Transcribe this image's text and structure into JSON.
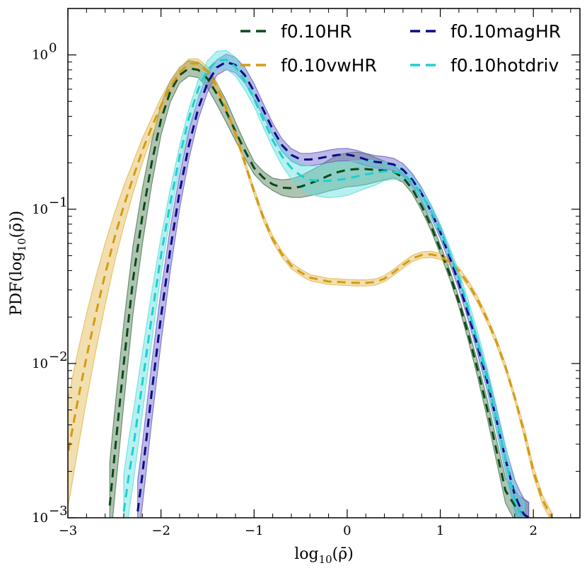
{
  "chart_data": {
    "type": "line",
    "xlabel": "log10(ρ̄)",
    "ylabel": "PDF(log10(ρ̄))",
    "xlim": [
      -3,
      2.5
    ],
    "ylim": [
      0.001,
      2
    ],
    "yscale": "log",
    "legend": "top-right, 2 columns",
    "xticks": [
      {
        "value": -3,
        "label": "−3"
      },
      {
        "value": -2,
        "label": "−2"
      },
      {
        "value": -1,
        "label": "−1"
      },
      {
        "value": 0,
        "label": "0"
      },
      {
        "value": 1,
        "label": "1"
      },
      {
        "value": 2,
        "label": "2"
      }
    ],
    "yticks": [
      {
        "value": 0.001,
        "base": "10",
        "exp": "−3"
      },
      {
        "value": 0.01,
        "base": "10",
        "exp": "−2"
      },
      {
        "value": 0.1,
        "base": "10",
        "exp": "−1"
      },
      {
        "value": 1,
        "base": "10",
        "exp": "0"
      }
    ],
    "series": [
      {
        "name": "f0.10HR",
        "color": "#0b4a15",
        "band_color": "#4d7a55",
        "x": [
          -2.55,
          -2.5,
          -2.4,
          -2.3,
          -2.2,
          -2.1,
          -2.0,
          -1.9,
          -1.8,
          -1.7,
          -1.6,
          -1.5,
          -1.4,
          -1.3,
          -1.2,
          -1.1,
          -1.0,
          -0.9,
          -0.8,
          -0.7,
          -0.6,
          -0.5,
          -0.4,
          -0.3,
          -0.2,
          -0.1,
          0.0,
          0.1,
          0.2,
          0.3,
          0.4,
          0.5,
          0.6,
          0.7,
          0.8,
          0.9,
          1.0,
          1.1,
          1.2,
          1.3,
          1.4,
          1.5,
          1.6,
          1.7,
          1.8,
          1.85,
          1.9,
          1.95
        ],
        "y": [
          0.0012,
          0.0025,
          0.01,
          0.035,
          0.09,
          0.2,
          0.38,
          0.58,
          0.74,
          0.82,
          0.8,
          0.7,
          0.56,
          0.43,
          0.32,
          0.24,
          0.185,
          0.16,
          0.145,
          0.138,
          0.137,
          0.14,
          0.147,
          0.155,
          0.165,
          0.174,
          0.18,
          0.182,
          0.182,
          0.18,
          0.178,
          0.175,
          0.16,
          0.135,
          0.105,
          0.078,
          0.055,
          0.038,
          0.025,
          0.0155,
          0.0092,
          0.0052,
          0.0028,
          0.0015,
          0.0012,
          0.0011,
          0.00105,
          0.001
        ],
        "band": [
          0.28,
          0.28,
          0.26,
          0.22,
          0.18,
          0.14,
          0.1,
          0.07,
          0.05,
          0.05,
          0.05,
          0.06,
          0.07,
          0.07,
          0.06,
          0.05,
          0.04,
          0.04,
          0.04,
          0.05,
          0.06,
          0.07,
          0.08,
          0.09,
          0.1,
          0.11,
          0.11,
          0.11,
          0.1,
          0.08,
          0.06,
          0.04,
          0.03,
          0.03,
          0.03,
          0.03,
          0.03,
          0.03,
          0.03,
          0.04,
          0.05,
          0.06,
          0.07,
          0.08,
          0.1,
          0.1,
          0.1,
          0.1
        ]
      },
      {
        "name": "f0.10vwHR",
        "color": "#d49b12",
        "band_color": "#e3b850",
        "x": [
          -3.05,
          -3.0,
          -2.9,
          -2.8,
          -2.7,
          -2.6,
          -2.5,
          -2.4,
          -2.3,
          -2.2,
          -2.1,
          -2.0,
          -1.9,
          -1.8,
          -1.7,
          -1.6,
          -1.5,
          -1.4,
          -1.3,
          -1.2,
          -1.1,
          -1.0,
          -0.9,
          -0.8,
          -0.7,
          -0.6,
          -0.5,
          -0.4,
          -0.3,
          -0.2,
          -0.1,
          0.0,
          0.1,
          0.2,
          0.3,
          0.4,
          0.5,
          0.6,
          0.7,
          0.8,
          0.9,
          1.0,
          1.1,
          1.2,
          1.3,
          1.4,
          1.5,
          1.6,
          1.7,
          1.8,
          1.9,
          2.0,
          2.1,
          2.2
        ],
        "y": [
          0.0018,
          0.0026,
          0.0055,
          0.011,
          0.021,
          0.038,
          0.065,
          0.105,
          0.16,
          0.24,
          0.34,
          0.47,
          0.62,
          0.77,
          0.88,
          0.88,
          0.78,
          0.62,
          0.45,
          0.31,
          0.2,
          0.13,
          0.088,
          0.064,
          0.051,
          0.043,
          0.039,
          0.036,
          0.035,
          0.034,
          0.0338,
          0.0335,
          0.0333,
          0.0333,
          0.0337,
          0.0355,
          0.039,
          0.0435,
          0.048,
          0.0505,
          0.051,
          0.0495,
          0.0455,
          0.04,
          0.033,
          0.026,
          0.0195,
          0.014,
          0.0095,
          0.006,
          0.0036,
          0.002,
          0.0013,
          0.001
        ],
        "band": [
          0.36,
          0.35,
          0.32,
          0.28,
          0.24,
          0.2,
          0.16,
          0.13,
          0.1,
          0.08,
          0.06,
          0.05,
          0.04,
          0.03,
          0.03,
          0.03,
          0.03,
          0.03,
          0.02,
          0.02,
          0.02,
          0.02,
          0.02,
          0.02,
          0.02,
          0.02,
          0.02,
          0.02,
          0.02,
          0.02,
          0.02,
          0.02,
          0.02,
          0.02,
          0.02,
          0.02,
          0.02,
          0.02,
          0.02,
          0.02,
          0.02,
          0.02,
          0.02,
          0.02,
          0.02,
          0.02,
          0.02,
          0.02,
          0.02,
          0.02,
          0.03,
          0.03,
          0.03,
          0.03
        ]
      },
      {
        "name": "f0.10magHR",
        "color": "#0a0a8a",
        "band_color": "#6a63c8",
        "x": [
          -2.25,
          -2.2,
          -2.1,
          -2.0,
          -1.9,
          -1.8,
          -1.7,
          -1.6,
          -1.5,
          -1.4,
          -1.3,
          -1.2,
          -1.1,
          -1.0,
          -0.9,
          -0.8,
          -0.7,
          -0.6,
          -0.5,
          -0.4,
          -0.3,
          -0.2,
          -0.1,
          0.0,
          0.1,
          0.2,
          0.3,
          0.4,
          0.5,
          0.6,
          0.7,
          0.8,
          0.9,
          1.0,
          1.1,
          1.2,
          1.3,
          1.4,
          1.5,
          1.6,
          1.7,
          1.8,
          1.85,
          1.9,
          1.95
        ],
        "y": [
          0.0011,
          0.0019,
          0.0065,
          0.02,
          0.055,
          0.13,
          0.26,
          0.45,
          0.66,
          0.83,
          0.9,
          0.86,
          0.74,
          0.58,
          0.44,
          0.33,
          0.26,
          0.225,
          0.21,
          0.21,
          0.214,
          0.22,
          0.225,
          0.226,
          0.22,
          0.21,
          0.203,
          0.2,
          0.195,
          0.18,
          0.155,
          0.126,
          0.097,
          0.071,
          0.049,
          0.033,
          0.021,
          0.013,
          0.0078,
          0.0044,
          0.0024,
          0.0014,
          0.0012,
          0.00105,
          0.001
        ],
        "band": [
          0.2,
          0.2,
          0.19,
          0.17,
          0.14,
          0.11,
          0.09,
          0.07,
          0.06,
          0.05,
          0.05,
          0.05,
          0.05,
          0.05,
          0.04,
          0.04,
          0.04,
          0.04,
          0.04,
          0.04,
          0.04,
          0.04,
          0.04,
          0.04,
          0.04,
          0.04,
          0.04,
          0.04,
          0.04,
          0.04,
          0.04,
          0.04,
          0.04,
          0.04,
          0.04,
          0.04,
          0.04,
          0.05,
          0.06,
          0.07,
          0.08,
          0.1,
          0.1,
          0.1,
          0.1
        ]
      },
      {
        "name": "f0.10hotdriv",
        "color": "#1ecfcf",
        "band_color": "#5fdedd",
        "x": [
          -2.4,
          -2.35,
          -2.3,
          -2.2,
          -2.1,
          -2.0,
          -1.9,
          -1.8,
          -1.7,
          -1.6,
          -1.5,
          -1.4,
          -1.3,
          -1.2,
          -1.1,
          -1.0,
          -0.9,
          -0.8,
          -0.7,
          -0.6,
          -0.5,
          -0.4,
          -0.3,
          -0.2,
          -0.1,
          0.0,
          0.1,
          0.2,
          0.3,
          0.4,
          0.5,
          0.6,
          0.7,
          0.8,
          0.9,
          1.0,
          1.1,
          1.2,
          1.3,
          1.4,
          1.5,
          1.6,
          1.7,
          1.8,
          1.85,
          1.9
        ],
        "y": [
          0.0011,
          0.0018,
          0.0028,
          0.0075,
          0.02,
          0.05,
          0.11,
          0.22,
          0.39,
          0.6,
          0.8,
          0.92,
          0.93,
          0.84,
          0.68,
          0.52,
          0.38,
          0.28,
          0.22,
          0.185,
          0.165,
          0.155,
          0.152,
          0.153,
          0.155,
          0.158,
          0.163,
          0.168,
          0.172,
          0.176,
          0.175,
          0.17,
          0.15,
          0.124,
          0.098,
          0.073,
          0.052,
          0.036,
          0.023,
          0.014,
          0.0082,
          0.0045,
          0.0024,
          0.0013,
          0.0011,
          0.001
        ],
        "band": [
          0.24,
          0.24,
          0.23,
          0.2,
          0.16,
          0.12,
          0.09,
          0.07,
          0.06,
          0.06,
          0.06,
          0.06,
          0.06,
          0.06,
          0.06,
          0.05,
          0.05,
          0.05,
          0.06,
          0.07,
          0.08,
          0.09,
          0.1,
          0.11,
          0.11,
          0.11,
          0.1,
          0.09,
          0.08,
          0.06,
          0.05,
          0.04,
          0.04,
          0.04,
          0.04,
          0.04,
          0.04,
          0.04,
          0.05,
          0.06,
          0.07,
          0.08,
          0.09,
          0.1,
          0.1,
          0.1
        ]
      }
    ]
  }
}
